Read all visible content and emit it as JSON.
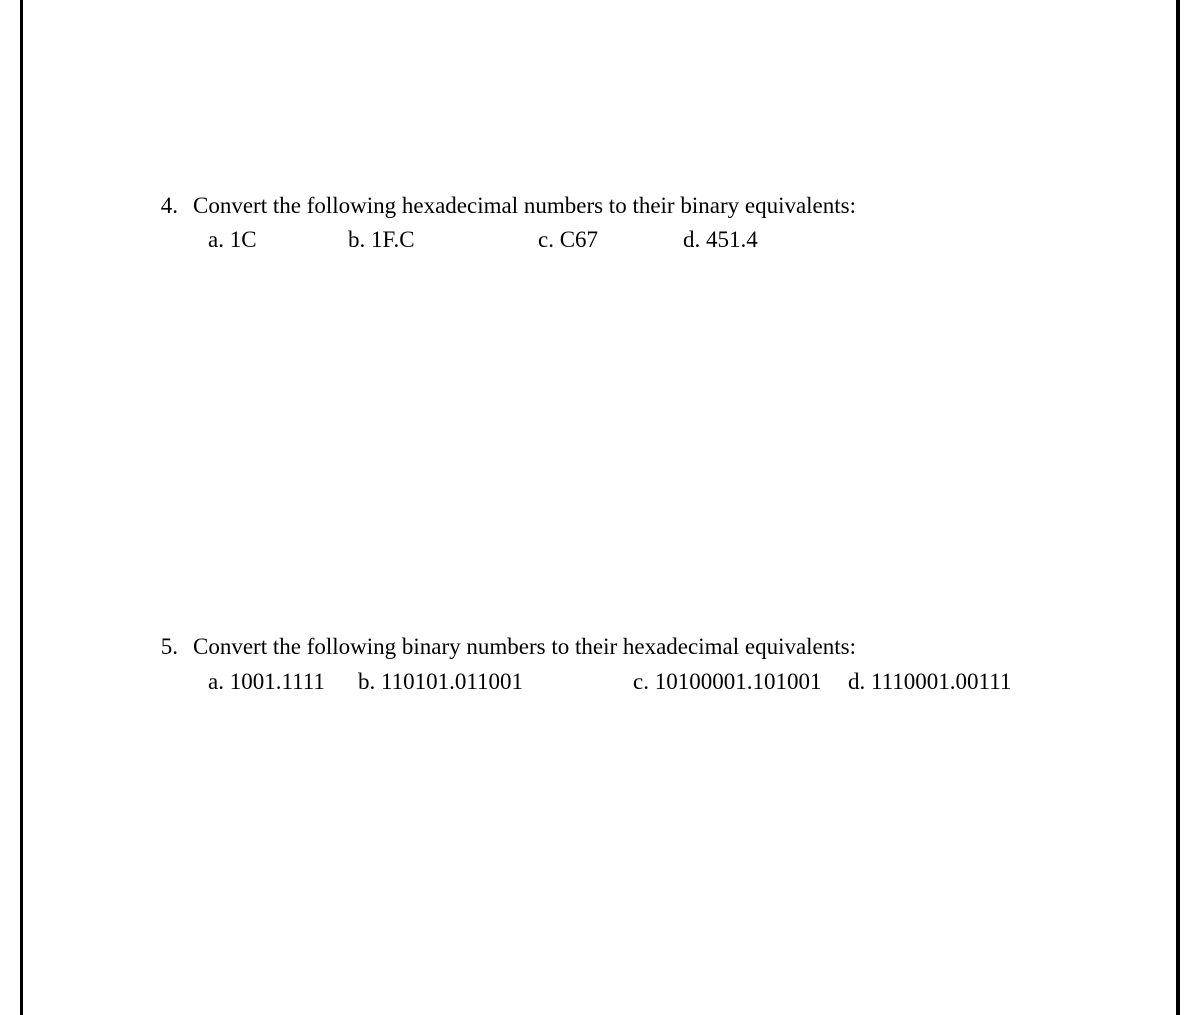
{
  "page": {
    "background_color": "#ffffff",
    "text_color": "#000000",
    "border_color": "#000000",
    "font_family": "Times New Roman",
    "font_size_pt": 17
  },
  "questions": [
    {
      "number": "4.",
      "prompt": "Convert the following hexadecimal numbers to their binary equivalents:",
      "options": {
        "a": "a. 1C",
        "b": "b.  1F.C",
        "c": "c. C67",
        "d": "d. 451.4"
      }
    },
    {
      "number": "5.",
      "prompt": "Convert the following binary numbers to their hexadecimal equivalents:",
      "options": {
        "a": "a. 1001.1111",
        "b": "b. 110101.011001",
        "c": "c. 10100001.101001",
        "d": "d. 1110001.00111"
      }
    }
  ]
}
